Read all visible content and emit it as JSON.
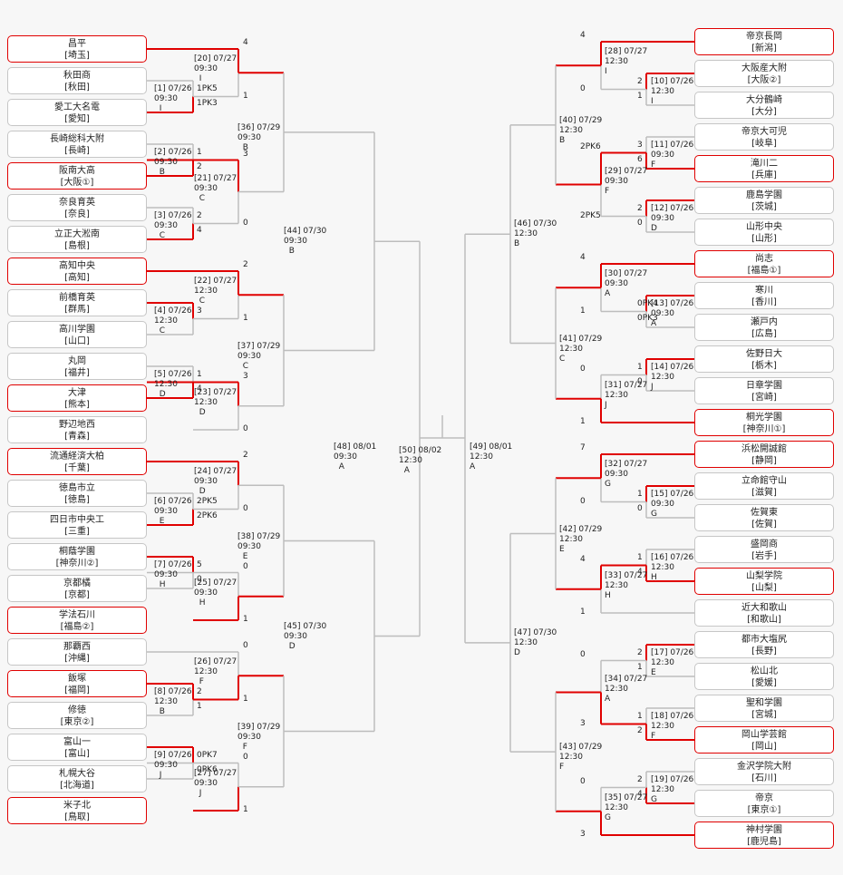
{
  "colors": {
    "win": "#e00000",
    "lose": "#bdbdbd",
    "bg": "#f7f7f7"
  },
  "left_teams": [
    {
      "name": "昌平",
      "pref": "[埼玉]",
      "win": true
    },
    {
      "name": "秋田商",
      "pref": "[秋田]",
      "win": false
    },
    {
      "name": "愛工大名電",
      "pref": "[愛知]",
      "win": false
    },
    {
      "name": "長崎総科大附",
      "pref": "[長崎]",
      "win": false
    },
    {
      "name": "阪南大高",
      "pref": "[大阪①]",
      "win": true
    },
    {
      "name": "奈良育英",
      "pref": "[奈良]",
      "win": false
    },
    {
      "name": "立正大淞南",
      "pref": "[島根]",
      "win": false
    },
    {
      "name": "高知中央",
      "pref": "[高知]",
      "win": true
    },
    {
      "name": "前橋育英",
      "pref": "[群馬]",
      "win": false
    },
    {
      "name": "高川学園",
      "pref": "[山口]",
      "win": false
    },
    {
      "name": "丸岡",
      "pref": "[福井]",
      "win": false
    },
    {
      "name": "大津",
      "pref": "[熊本]",
      "win": true
    },
    {
      "name": "野辺地西",
      "pref": "[青森]",
      "win": false
    },
    {
      "name": "流通経済大柏",
      "pref": "[千葉]",
      "win": true
    },
    {
      "name": "徳島市立",
      "pref": "[徳島]",
      "win": false
    },
    {
      "name": "四日市中央工",
      "pref": "[三重]",
      "win": false
    },
    {
      "name": "桐蔭学園",
      "pref": "[神奈川②]",
      "win": false
    },
    {
      "name": "京都橘",
      "pref": "[京都]",
      "win": false
    },
    {
      "name": "学法石川",
      "pref": "[福島②]",
      "win": true
    },
    {
      "name": "那覇西",
      "pref": "[沖縄]",
      "win": false
    },
    {
      "name": "飯塚",
      "pref": "[福岡]",
      "win": true
    },
    {
      "name": "修徳",
      "pref": "[東京②]",
      "win": false
    },
    {
      "name": "富山一",
      "pref": "[富山]",
      "win": false
    },
    {
      "name": "札幌大谷",
      "pref": "[北海道]",
      "win": false
    },
    {
      "name": "米子北",
      "pref": "[鳥取]",
      "win": true
    }
  ],
  "right_teams": [
    {
      "name": "帝京長岡",
      "pref": "[新潟]",
      "win": true
    },
    {
      "name": "大阪産大附",
      "pref": "[大阪②]",
      "win": false
    },
    {
      "name": "大分鶴崎",
      "pref": "[大分]",
      "win": false
    },
    {
      "name": "帝京大可児",
      "pref": "[岐阜]",
      "win": false
    },
    {
      "name": "滝川二",
      "pref": "[兵庫]",
      "win": true
    },
    {
      "name": "鹿島学園",
      "pref": "[茨城]",
      "win": false
    },
    {
      "name": "山形中央",
      "pref": "[山形]",
      "win": false
    },
    {
      "name": "尚志",
      "pref": "[福島①]",
      "win": true
    },
    {
      "name": "寒川",
      "pref": "[香川]",
      "win": false
    },
    {
      "name": "瀬戸内",
      "pref": "[広島]",
      "win": false
    },
    {
      "name": "佐野日大",
      "pref": "[栃木]",
      "win": false
    },
    {
      "name": "日章学園",
      "pref": "[宮崎]",
      "win": false
    },
    {
      "name": "桐光学園",
      "pref": "[神奈川①]",
      "win": true
    },
    {
      "name": "浜松開誠館",
      "pref": "[静岡]",
      "win": true
    },
    {
      "name": "立命館守山",
      "pref": "[滋賀]",
      "win": false
    },
    {
      "name": "佐賀東",
      "pref": "[佐賀]",
      "win": false
    },
    {
      "name": "盛岡商",
      "pref": "[岩手]",
      "win": false
    },
    {
      "name": "山梨学院",
      "pref": "[山梨]",
      "win": true
    },
    {
      "name": "近大和歌山",
      "pref": "[和歌山]",
      "win": false
    },
    {
      "name": "都市大塩尻",
      "pref": "[長野]",
      "win": false
    },
    {
      "name": "松山北",
      "pref": "[愛媛]",
      "win": false
    },
    {
      "name": "聖和学園",
      "pref": "[宮城]",
      "win": false
    },
    {
      "name": "岡山学芸館",
      "pref": "[岡山]",
      "win": true
    },
    {
      "name": "金沢学院大附",
      "pref": "[石川]",
      "win": false
    },
    {
      "name": "帝京",
      "pref": "[東京①]",
      "win": false
    },
    {
      "name": "神村学園",
      "pref": "[鹿児島]",
      "win": true
    }
  ],
  "matches_left": [
    {
      "label": "[1] 07/26\n09:30\n  I",
      "s1": "1PK5",
      "s2": "1PK3"
    },
    {
      "label": "[2] 07/26\n09:30\n  B",
      "s1": "1",
      "s2": "2"
    },
    {
      "label": "[3] 07/26\n09:30\n  C",
      "s1": "2",
      "s2": "4"
    },
    {
      "label": "[4] 07/26\n12:30\n  C",
      "s1": "3",
      "s2": ""
    },
    {
      "label": "[5] 07/26\n12:30\n  D",
      "s1": "1",
      "s2": "4"
    },
    {
      "label": "[6] 07/26\n09:30\n  E",
      "s1": "2PK5",
      "s2": "2PK6"
    },
    {
      "label": "[7] 07/26\n09:30\n  H",
      "s1": "5",
      "s2": "0"
    },
    {
      "label": "[8] 07/26\n12:30\n  B",
      "s1": "2",
      "s2": "1"
    },
    {
      "label": "[9] 07/26\n09:30\n  J",
      "s1": "0PK7",
      "s2": "0PK6"
    },
    {
      "label": "[20] 07/27\n09:30\n  I",
      "s1": "4",
      "s2": "1"
    },
    {
      "label": "[21] 07/27\n09:30\n  C",
      "s1": "3",
      "s2": "0"
    },
    {
      "label": "[22] 07/27\n12:30\n  C",
      "s1": "2",
      "s2": "1"
    },
    {
      "label": "[23] 07/27\n12:30\n  D",
      "s1": "3",
      "s2": "0"
    },
    {
      "label": "[24] 07/27\n09:30\n  D",
      "s1": "2",
      "s2": "0"
    },
    {
      "label": "[25] 07/27\n09:30\n  H",
      "s1": "0",
      "s2": "1"
    },
    {
      "label": "[26] 07/27\n12:30\n  F",
      "s1": "0",
      "s2": "1"
    },
    {
      "label": "[27] 07/27\n09:30\n  J",
      "s1": "0",
      "s2": "1"
    },
    {
      "label": "[36] 07/29\n09:30\n  B",
      "s1": "",
      "s2": ""
    },
    {
      "label": "[37] 07/29\n09:30\n  C",
      "s1": "",
      "s2": ""
    },
    {
      "label": "[38] 07/29\n09:30\n  E",
      "s1": "",
      "s2": ""
    },
    {
      "label": "[39] 07/29\n09:30\n  F",
      "s1": "",
      "s2": ""
    },
    {
      "label": "[44] 07/30\n09:30\n  B",
      "s1": "",
      "s2": ""
    },
    {
      "label": "[45] 07/30\n09:30\n  D",
      "s1": "",
      "s2": ""
    },
    {
      "label": "[48] 08/01\n09:30\n  A",
      "s1": "",
      "s2": ""
    }
  ],
  "matches_right": [
    {
      "label": "[10] 07/26\n12:30\nI",
      "s1": "2",
      "s2": "1"
    },
    {
      "label": "[11] 07/26\n09:30\nF",
      "s1": "3",
      "s2": "6"
    },
    {
      "label": "[12] 07/26\n09:30\nD",
      "s1": "2",
      "s2": "0"
    },
    {
      "label": "[13] 07/26\n09:30\nA",
      "s1": "0PK4",
      "s2": "0PK3"
    },
    {
      "label": "[14] 07/26\n12:30\nJ",
      "s1": "1",
      "s2": "0"
    },
    {
      "label": "[15] 07/26\n09:30\nG",
      "s1": "1",
      "s2": "0"
    },
    {
      "label": "[16] 07/26\n12:30\nH",
      "s1": "1",
      "s2": "4"
    },
    {
      "label": "[17] 07/26\n12:30\nE",
      "s1": "2",
      "s2": "1"
    },
    {
      "label": "[18] 07/26\n12:30\nF",
      "s1": "1",
      "s2": "2"
    },
    {
      "label": "[19] 07/26\n12:30\nG",
      "s1": "2",
      "s2": "4"
    },
    {
      "label": "[28] 07/27\n12:30\nI",
      "s1": "4",
      "s2": "0"
    },
    {
      "label": "[29] 07/27\n09:30\nF",
      "s1": "2PK6",
      "s2": "2PK5"
    },
    {
      "label": "[30] 07/27\n09:30\nA",
      "s1": "4",
      "s2": "1"
    },
    {
      "label": "[31] 07/27\n12:30\nJ",
      "s1": "0",
      "s2": "1"
    },
    {
      "label": "[32] 07/27\n09:30\nG",
      "s1": "7",
      "s2": "0"
    },
    {
      "label": "[33] 07/27\n12:30\nH",
      "s1": "4",
      "s2": "1"
    },
    {
      "label": "[34] 07/27\n12:30\nA",
      "s1": "0",
      "s2": "3"
    },
    {
      "label": "[35] 07/27\n12:30\nG",
      "s1": "0",
      "s2": "3"
    },
    {
      "label": "[40] 07/29\n12:30\nB",
      "s1": "",
      "s2": ""
    },
    {
      "label": "[41] 07/29\n12:30\nC",
      "s1": "",
      "s2": ""
    },
    {
      "label": "[42] 07/29\n12:30\nE",
      "s1": "",
      "s2": ""
    },
    {
      "label": "[43] 07/29\n12:30\nF",
      "s1": "",
      "s2": ""
    },
    {
      "label": "[46] 07/30\n12:30\nB",
      "s1": "",
      "s2": ""
    },
    {
      "label": "[47] 07/30\n12:30\nD",
      "s1": "",
      "s2": ""
    },
    {
      "label": "[49] 08/01\n12:30\nA",
      "s1": "",
      "s2": ""
    }
  ],
  "final": {
    "label": "[50] 08/02\n12:30\n  A"
  }
}
